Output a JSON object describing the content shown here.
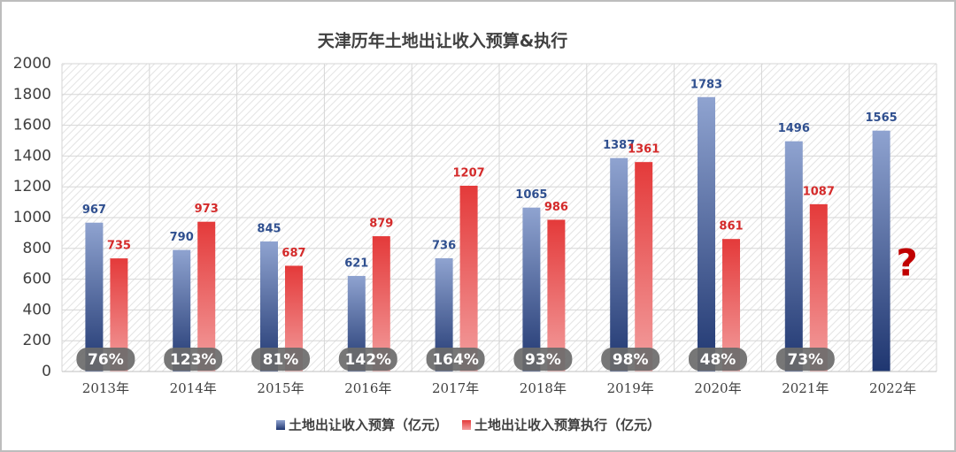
{
  "chart_data": {
    "type": "bar",
    "title": "天津历年土地出让收入预算&执行",
    "categories": [
      "2013年",
      "2014年",
      "2015年",
      "2016年",
      "2017年",
      "2018年",
      "2019年",
      "2020年",
      "2021年",
      "2022年"
    ],
    "series": [
      {
        "name": "土地出让收入预算（亿元）",
        "color": "#2f4f8f",
        "values": [
          967,
          790,
          845,
          621,
          736,
          1065,
          1387,
          1783,
          1496,
          1565
        ]
      },
      {
        "name": "土地出让收入预算执行（亿元）",
        "color": "#d42a2a",
        "values": [
          735,
          973,
          687,
          879,
          1207,
          986,
          1361,
          861,
          1087,
          null
        ]
      }
    ],
    "rate_labels": [
      "76%",
      "123%",
      "81%",
      "142%",
      "164%",
      "93%",
      "98%",
      "48%",
      "73%",
      null
    ],
    "annotation": "?",
    "ylim": [
      0,
      2000
    ],
    "yticks": [
      0,
      200,
      400,
      600,
      800,
      1000,
      1200,
      1400,
      1600,
      1800,
      2000
    ],
    "grid": true
  }
}
